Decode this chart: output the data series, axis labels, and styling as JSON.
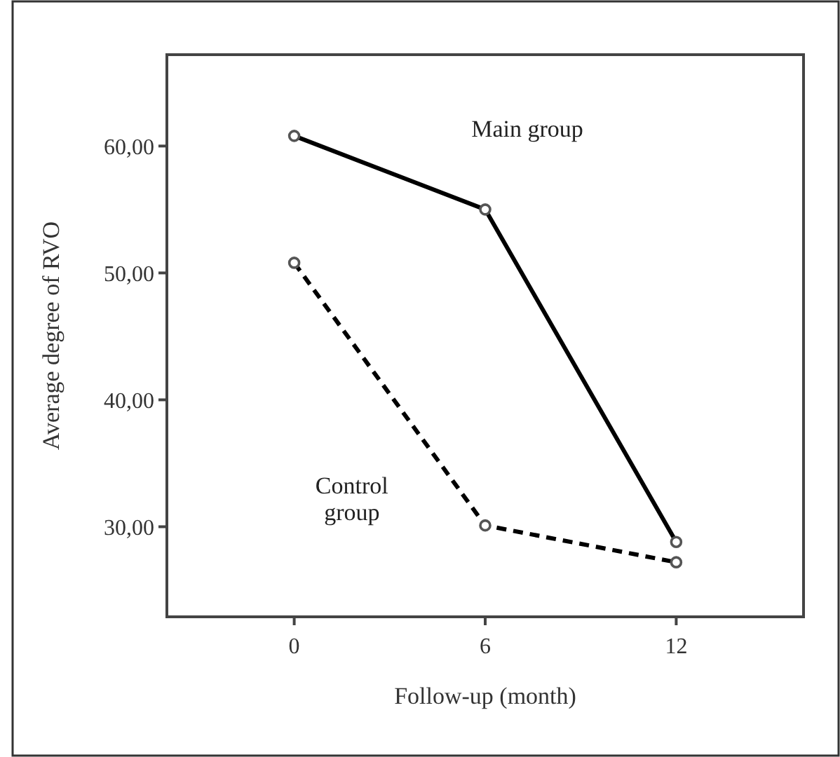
{
  "chart_data": {
    "type": "line",
    "xlabel": "Follow-up (month)",
    "ylabel": "Average degree of RVO",
    "x": [
      0,
      6,
      12
    ],
    "series": [
      {
        "name": "Main group",
        "color": "#000000",
        "values": [
          60.8,
          55.0,
          28.8
        ],
        "line_style": "solid"
      },
      {
        "name": "Control group",
        "color": "#000000",
        "values": [
          50.8,
          30.1,
          27.2
        ],
        "line_style": "dashed"
      }
    ],
    "xlim": [
      -4,
      16
    ],
    "xticks": [
      0,
      6,
      12
    ],
    "ylim": [
      22.9,
      67.2
    ],
    "yticks": [
      {
        "value": 30,
        "label": "30,00"
      },
      {
        "value": 40,
        "label": "40,00"
      },
      {
        "value": 50,
        "label": "50,00"
      },
      {
        "value": 60,
        "label": "60,00"
      }
    ],
    "grid": false,
    "marker": "circle"
  }
}
